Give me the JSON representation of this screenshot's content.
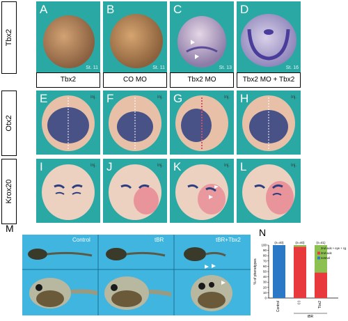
{
  "row_labels": {
    "tbx2": "Tbx2",
    "otx2": "Otx2",
    "krox20": "Krox20"
  },
  "top_panels": [
    {
      "letter": "A",
      "stage": "St. 11"
    },
    {
      "letter": "B",
      "stage": "St. 11"
    },
    {
      "letter": "C",
      "stage": "St. 13"
    },
    {
      "letter": "D",
      "stage": "St. 16"
    }
  ],
  "column_headers": [
    "Tbx2",
    "CO MO",
    "Tbx2 MO",
    "Tbx2 MO + Tbx2"
  ],
  "otx_panels": [
    {
      "letter": "E",
      "inj": "Inj."
    },
    {
      "letter": "F",
      "inj": "Inj."
    },
    {
      "letter": "G",
      "inj": "Inj."
    },
    {
      "letter": "H",
      "inj": "Inj."
    }
  ],
  "krox_panels": [
    {
      "letter": "I",
      "inj": "Inj."
    },
    {
      "letter": "J",
      "inj": "Inj."
    },
    {
      "letter": "K",
      "inj": "Inj."
    },
    {
      "letter": "L",
      "inj": "Inj."
    }
  ],
  "panel_m": {
    "letter": "M",
    "labels": [
      "Control",
      "tBR",
      "tBR+Tbx2"
    ]
  },
  "panel_n": {
    "letter": "N"
  },
  "chart_data": {
    "type": "bar",
    "stacked": true,
    "categories": [
      "Control",
      "(-)",
      "Tbx2"
    ],
    "group_label": "tBR",
    "counts": [
      "(n=40)",
      "(n=40)",
      "(n=41)"
    ],
    "ylabel": "% of phenotypes",
    "ylim": [
      0,
      100
    ],
    "yticks": [
      0,
      10,
      20,
      30,
      40,
      50,
      60,
      70,
      80,
      90,
      100
    ],
    "series": [
      {
        "name": "normal",
        "color": "#2b78c6",
        "values": [
          100,
          0,
          0
        ]
      },
      {
        "name": "2nd axis",
        "color": "#e8393c",
        "values": [
          0,
          97,
          48
        ]
      },
      {
        "name": "2nd axis + eye + cg",
        "color": "#8cc152",
        "values": [
          0,
          3,
          52
        ]
      }
    ],
    "legend_position": "top-right"
  }
}
